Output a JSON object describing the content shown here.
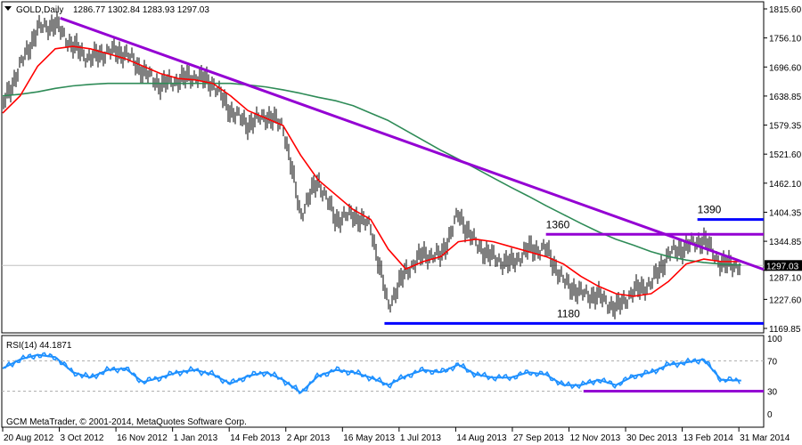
{
  "header": {
    "symbol": "GOLD,Daily",
    "ohlc": "1286.77 1302.84 1283.93 1297.03",
    "menu_icon": "triangle-down-icon"
  },
  "rsi_header": "RSI(14) 44.1871",
  "copyright": "GCM MetaTrader, © 2001-2014, MetaQuotes Software Corp.",
  "colors": {
    "bars": "#000000",
    "ma_fast": "#ff0000",
    "ma_slow": "#2e8b57",
    "trendline": "#9400d3",
    "support": "#0000ff",
    "rsi": "#1e90ff",
    "last_price_bg": "#000000"
  },
  "chart_data": [
    {
      "type": "bar",
      "title": "GOLD,Daily",
      "ylim": [
        1169.85,
        1815.6
      ],
      "y_ticks": [
        "1815.60",
        "1756.10",
        "1696.60",
        "1638.85",
        "1579.35",
        "1521.60",
        "1462.10",
        "1404.35",
        "1344.85",
        "1287.10",
        "1227.60",
        "1169.85"
      ],
      "x_ticks": [
        "20 Aug 2012",
        "3 Oct 2012",
        "16 Nov 2012",
        "1 Jan 2013",
        "14 Feb 2013",
        "2 Apr 2013",
        "16 May 2013",
        "1 Jul 2013",
        "14 Aug 2013",
        "27 Sep 2013",
        "12 Nov 2013",
        "30 Dec 2013",
        "13 Feb 2014",
        "31 Mar 2014"
      ],
      "last_price": "1297.03",
      "dates": [
        "2012-08-20",
        "2012-09-03",
        "2012-09-17",
        "2012-10-01",
        "2012-10-15",
        "2012-10-29",
        "2012-11-12",
        "2012-11-26",
        "2012-12-10",
        "2012-12-24",
        "2013-01-07",
        "2013-01-21",
        "2013-02-04",
        "2013-02-18",
        "2013-03-04",
        "2013-03-18",
        "2013-04-01",
        "2013-04-15",
        "2013-04-29",
        "2013-05-13",
        "2013-05-27",
        "2013-06-10",
        "2013-06-24",
        "2013-07-08",
        "2013-07-22",
        "2013-08-05",
        "2013-08-19",
        "2013-09-02",
        "2013-09-16",
        "2013-09-30",
        "2013-10-14",
        "2013-10-28",
        "2013-11-11",
        "2013-11-25",
        "2013-12-09",
        "2013-12-23",
        "2014-01-06",
        "2014-01-20",
        "2014-02-03",
        "2014-02-17",
        "2014-03-03",
        "2014-03-17",
        "2014-04-02"
      ],
      "series": [
        {
          "name": "GOLD",
          "kind": "price",
          "values": [
            1620,
            1700,
            1775,
            1785,
            1740,
            1715,
            1730,
            1726,
            1690,
            1662,
            1672,
            1680,
            1665,
            1610,
            1582,
            1600,
            1580,
            1400,
            1470,
            1390,
            1400,
            1375,
            1215,
            1285,
            1320,
            1315,
            1400,
            1340,
            1312,
            1300,
            1330,
            1330,
            1265,
            1240,
            1235,
            1210,
            1245,
            1260,
            1320,
            1335,
            1350,
            1300,
            1297
          ]
        },
        {
          "kind": "ma_fast",
          "values": [
            1605,
            1640,
            1700,
            1735,
            1740,
            1735,
            1725,
            1715,
            1700,
            1685,
            1675,
            1672,
            1665,
            1640,
            1610,
            1595,
            1580,
            1520,
            1470,
            1440,
            1410,
            1390,
            1330,
            1290,
            1305,
            1315,
            1345,
            1350,
            1345,
            1335,
            1325,
            1315,
            1300,
            1275,
            1255,
            1240,
            1235,
            1240,
            1265,
            1300,
            1310,
            1305,
            1305
          ]
        },
        {
          "kind": "ma_slow",
          "values": [
            1640,
            1643,
            1648,
            1655,
            1660,
            1663,
            1665,
            1665,
            1665,
            1665,
            1665,
            1665,
            1665,
            1665,
            1662,
            1658,
            1652,
            1645,
            1637,
            1630,
            1620,
            1605,
            1590,
            1570,
            1550,
            1530,
            1512,
            1493,
            1474,
            1455,
            1437,
            1418,
            1400,
            1382,
            1365,
            1350,
            1338,
            1325,
            1315,
            1308,
            1303,
            1300,
            1298
          ]
        }
      ],
      "annotations": [
        {
          "kind": "trendline",
          "from": [
            "2012-10-05",
            1797
          ],
          "to": [
            "2014-04-20",
            1289
          ]
        },
        {
          "kind": "level",
          "label": "1390",
          "price": 1390,
          "from": "2014-02-26",
          "color": "support"
        },
        {
          "kind": "level",
          "label": "1360",
          "price": 1360,
          "from": "2013-10-28",
          "color": "trendline"
        },
        {
          "kind": "level",
          "label": "1180",
          "price": 1180,
          "from": "2013-06-21",
          "color": "support"
        }
      ]
    },
    {
      "type": "line",
      "title": "RSI(14) 44.1871",
      "ylim": [
        0,
        100
      ],
      "y_ticks": [
        "100",
        "70",
        "30",
        "0"
      ],
      "levels": [
        70,
        30
      ],
      "series": [
        {
          "kind": "rsi",
          "values": [
            60,
            72,
            78,
            75,
            55,
            48,
            58,
            60,
            42,
            48,
            55,
            58,
            52,
            40,
            50,
            55,
            45,
            28,
            50,
            58,
            55,
            48,
            38,
            50,
            58,
            55,
            65,
            52,
            48,
            48,
            55,
            52,
            38,
            38,
            45,
            38,
            50,
            55,
            65,
            68,
            72,
            45,
            44
          ]
        }
      ],
      "annotations": [
        {
          "kind": "level",
          "price": 30,
          "from": "2013-11-27",
          "color": "trendline"
        }
      ]
    }
  ]
}
